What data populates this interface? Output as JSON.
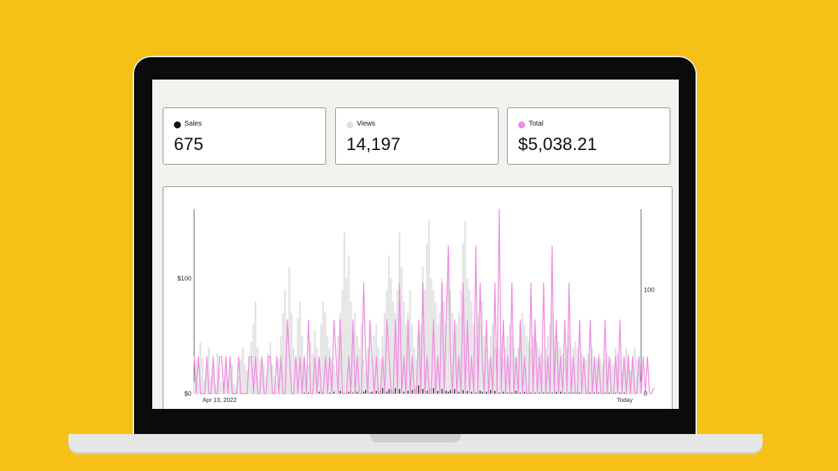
{
  "stats": [
    {
      "label": "Sales",
      "value": "675",
      "dot_color": "#111111"
    },
    {
      "label": "Views",
      "value": "14,197",
      "dot_color": "#e2e2e2"
    },
    {
      "label": "Total",
      "value": "$5,038.21",
      "dot_color": "#ef8ce0"
    }
  ],
  "chart_data": {
    "type": "line",
    "title": "",
    "x_start_label": "Apr 13, 2022",
    "x_end_label": "Today",
    "left_axis": {
      "ticks": [
        "$0",
        "$100"
      ],
      "range": [
        0,
        160
      ]
    },
    "right_axis": {
      "ticks": [
        "0",
        "100"
      ],
      "range": [
        0,
        160
      ]
    },
    "colors": {
      "sales": "#222222",
      "views": "#e4e4e4",
      "total": "#ef8ce0"
    },
    "series": [
      {
        "name": "Views",
        "kind": "area",
        "values": [
          10,
          30,
          8,
          45,
          30,
          12,
          20,
          40,
          15,
          25,
          8,
          35,
          22,
          10,
          5,
          28,
          12,
          18,
          25,
          8,
          5,
          15,
          30,
          40,
          25,
          20,
          32,
          45,
          60,
          80,
          40,
          30,
          20,
          25,
          15,
          35,
          45,
          25,
          15,
          10,
          30,
          50,
          70,
          90,
          60,
          110,
          70,
          40,
          30,
          65,
          80,
          50,
          30,
          20,
          25,
          45,
          35,
          55,
          40,
          30,
          60,
          80,
          70,
          50,
          40,
          30,
          25,
          20,
          50,
          70,
          90,
          140,
          100,
          120,
          80,
          60,
          70,
          50,
          40,
          60,
          30,
          20,
          40,
          50,
          30,
          50,
          60,
          40,
          30,
          50,
          70,
          90,
          120,
          100,
          80,
          70,
          90,
          140,
          110,
          80,
          60,
          70,
          90,
          60,
          40,
          30,
          50,
          60,
          110,
          90,
          130,
          150,
          100,
          90,
          80,
          60,
          70,
          100,
          80,
          60,
          120,
          90,
          70,
          50,
          60,
          70,
          90,
          130,
          150,
          100,
          90,
          80,
          60,
          50,
          70,
          60,
          80,
          50,
          40,
          30,
          50,
          60,
          40,
          30,
          40,
          50,
          30,
          40,
          50,
          60,
          50,
          40,
          30,
          40,
          60,
          70,
          60,
          50,
          45,
          40,
          50,
          55,
          45,
          40,
          35,
          30,
          40,
          50,
          60,
          70,
          50,
          40,
          45,
          40,
          35,
          30,
          40,
          50,
          30,
          40,
          45,
          40,
          30,
          35,
          25,
          30,
          35,
          30,
          40,
          25,
          30,
          35,
          30,
          25,
          30,
          35,
          20,
          30,
          25,
          40,
          35,
          30,
          20,
          30,
          40,
          35,
          20,
          25,
          40,
          30,
          20,
          10
        ]
      },
      {
        "name": "Sales",
        "kind": "bars",
        "values": [
          0,
          0,
          0,
          0,
          0,
          0,
          0,
          0,
          0,
          0,
          0,
          0,
          0,
          0,
          0,
          0,
          0,
          0,
          0,
          0,
          0,
          0,
          0,
          0,
          0,
          0,
          0,
          0,
          0,
          0,
          0,
          0,
          0,
          0,
          0,
          0,
          0,
          0,
          0,
          0,
          0,
          0,
          0,
          0,
          0,
          0,
          0,
          0,
          0,
          0,
          0,
          0,
          1,
          0,
          1,
          0,
          1,
          0,
          0,
          2,
          0,
          1,
          0,
          0,
          1,
          0,
          2,
          0,
          1,
          3,
          2,
          0,
          1,
          2,
          4,
          1,
          3,
          2,
          0,
          1,
          2,
          4,
          3,
          1,
          2,
          5,
          3,
          2,
          4,
          6,
          3,
          2,
          5,
          4,
          3,
          6,
          8,
          5,
          3,
          2,
          4,
          3,
          6,
          4,
          5,
          7,
          9,
          6,
          5,
          4,
          3,
          5,
          4,
          6,
          4,
          3,
          2,
          5,
          4,
          3,
          2,
          4,
          3,
          5,
          4,
          2,
          3,
          4,
          2,
          3,
          4,
          2,
          3,
          1,
          2,
          3,
          2,
          1,
          2,
          3,
          4,
          2,
          3,
          2,
          1,
          2,
          2,
          3,
          1,
          2,
          1,
          2,
          3,
          2,
          1,
          2,
          2,
          1,
          2,
          1,
          2,
          1,
          0,
          1,
          2,
          1,
          2,
          1,
          2,
          1,
          1,
          2,
          1,
          2,
          1,
          1,
          0,
          1,
          2,
          1,
          1,
          2,
          1,
          1,
          0,
          1,
          2,
          1,
          1,
          1,
          2,
          1,
          0,
          1,
          1,
          2,
          1,
          0,
          1,
          1,
          0,
          1,
          2,
          1
        ]
      },
      {
        "name": "Total",
        "kind": "line",
        "values": [
          32,
          0,
          32,
          0,
          0,
          0,
          32,
          0,
          0,
          32,
          0,
          0,
          32,
          32,
          0,
          32,
          0,
          32,
          0,
          0,
          0,
          32,
          0,
          0,
          0,
          0,
          32,
          32,
          0,
          32,
          0,
          0,
          32,
          0,
          0,
          32,
          32,
          0,
          0,
          32,
          0,
          32,
          0,
          0,
          64,
          32,
          0,
          0,
          32,
          0,
          32,
          0,
          32,
          0,
          64,
          0,
          0,
          32,
          0,
          32,
          0,
          0,
          32,
          0,
          32,
          0,
          64,
          32,
          0,
          64,
          0,
          0,
          0,
          32,
          0,
          64,
          0,
          32,
          0,
          0,
          96,
          32,
          0,
          64,
          32,
          0,
          32,
          0,
          0,
          32,
          0,
          64,
          32,
          0,
          0,
          64,
          0,
          96,
          0,
          32,
          0,
          64,
          0,
          32,
          0,
          0,
          64,
          0,
          96,
          0,
          32,
          0,
          0,
          64,
          0,
          32,
          0,
          96,
          0,
          64,
          128,
          32,
          0,
          64,
          0,
          32,
          0,
          96,
          0,
          64,
          0,
          32,
          0,
          128,
          0,
          96,
          32,
          0,
          64,
          0,
          32,
          0,
          96,
          0,
          160,
          0,
          64,
          0,
          32,
          0,
          96,
          0,
          32,
          0,
          64,
          0,
          32,
          0,
          0,
          96,
          0,
          64,
          0,
          32,
          0,
          96,
          0,
          32,
          0,
          128,
          0,
          64,
          0,
          32,
          0,
          64,
          0,
          96,
          0,
          32,
          0,
          0,
          64,
          0,
          32,
          0,
          0,
          64,
          0,
          32,
          0,
          32,
          0,
          0,
          64,
          0,
          32,
          0,
          0,
          32,
          0,
          64,
          0,
          32,
          0,
          32,
          0,
          32,
          0,
          0,
          32,
          0,
          32,
          0,
          32,
          0,
          0,
          5
        ]
      }
    ]
  }
}
